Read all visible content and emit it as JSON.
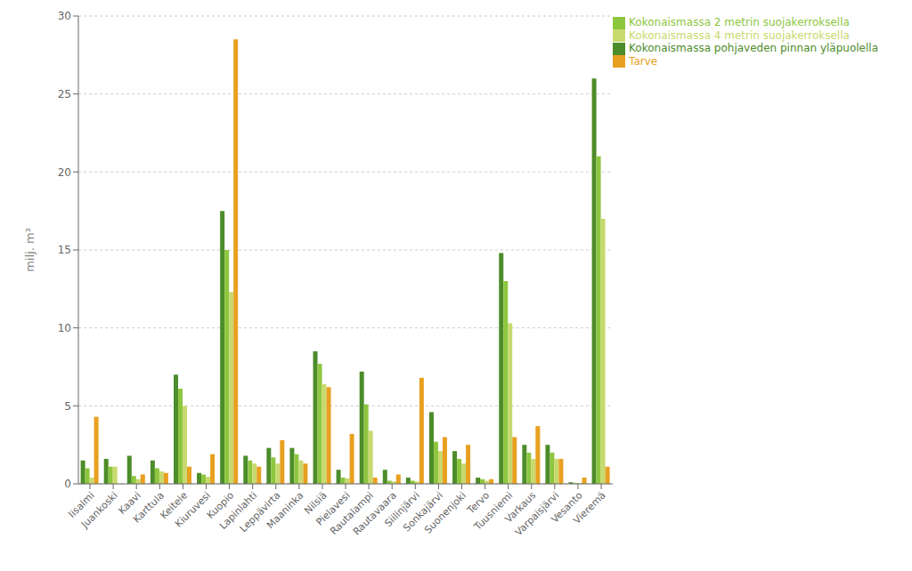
{
  "chart_data": {
    "type": "bar",
    "categories": [
      "Iisalmi",
      "Juankoski",
      "Kaavi",
      "Karttula",
      "Keitele",
      "Kiuruvesi",
      "Kuopio",
      "Lapinlahti",
      "Leppävirta",
      "Maaninka",
      "Nilsiä",
      "Pielavesi",
      "Rautalampi",
      "Rautavaara",
      "Siilinjärvi",
      "Sonkajärvi",
      "Suonenjoki",
      "Tervo",
      "Tuusniemi",
      "Varkaus",
      "Varpaisjärvi",
      "Vesanto",
      "Vieremä"
    ],
    "series": [
      {
        "name": "Kokonaismassa pohjaveden pinnan yläpuolella",
        "color": "#4d8c2a",
        "values": [
          1.5,
          1.6,
          1.8,
          1.5,
          7.0,
          0.7,
          17.5,
          1.8,
          2.3,
          2.3,
          8.5,
          0.9,
          7.2,
          0.9,
          0.4,
          4.6,
          2.1,
          0.4,
          14.8,
          2.5,
          2.5,
          0.1,
          26.0
        ]
      },
      {
        "name": "Kokonaismassa 2 metrin suojakerroksella",
        "color": "#8dc63f",
        "values": [
          1.0,
          1.1,
          0.5,
          1.0,
          6.1,
          0.6,
          15.0,
          1.5,
          1.7,
          1.9,
          7.7,
          0.4,
          5.1,
          0.2,
          0.2,
          2.7,
          1.6,
          0.3,
          13.0,
          2.0,
          2.0,
          0.05,
          21.0
        ]
      },
      {
        "name": "Kokonaismassa 4 metrin suojakerroksella",
        "color": "#c8d96e",
        "values": [
          0.4,
          1.1,
          0.3,
          0.8,
          5.0,
          0.45,
          12.3,
          1.3,
          1.3,
          1.5,
          6.4,
          0.35,
          3.4,
          0.15,
          0.15,
          2.1,
          1.3,
          0.2,
          10.3,
          1.6,
          1.6,
          0.05,
          17.0
        ]
      },
      {
        "name": "Tarve",
        "color": "#e8a020",
        "values": [
          4.3,
          0.0,
          0.6,
          0.7,
          1.1,
          1.9,
          28.5,
          1.1,
          2.8,
          1.3,
          6.2,
          3.2,
          0.4,
          0.6,
          6.8,
          3.0,
          2.5,
          0.3,
          3.0,
          3.7,
          1.6,
          0.4,
          1.1
        ]
      }
    ],
    "ylabel": "milj. m³",
    "ylim": [
      0,
      30
    ],
    "yticks": [
      0,
      5,
      10,
      15,
      20,
      25,
      30
    ],
    "grid": true,
    "legend": "upper right"
  }
}
